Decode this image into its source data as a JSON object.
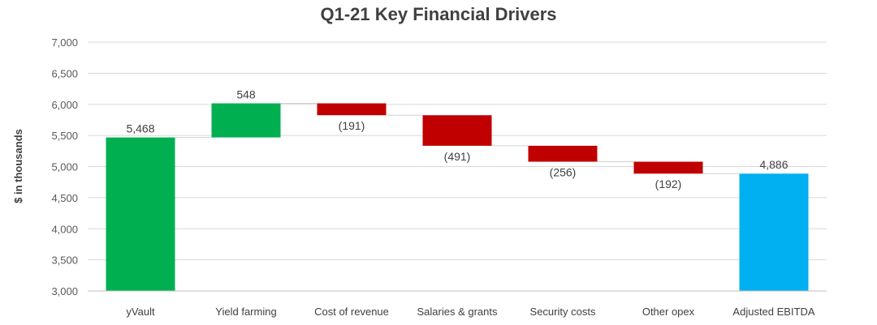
{
  "chart_data": {
    "type": "waterfall",
    "title": "Q1-21 Key Financial Drivers",
    "xlabel": "",
    "ylabel": "$ in thousands",
    "ylim": [
      3000,
      7000
    ],
    "yticks": [
      3000,
      3500,
      4000,
      4500,
      5000,
      5500,
      6000,
      6500,
      7000
    ],
    "ytick_labels": [
      "3,000",
      "3,500",
      "4,000",
      "4,500",
      "5,000",
      "5,500",
      "6,000",
      "6,500",
      "7,000"
    ],
    "grid": true,
    "legend": "none",
    "categories": [
      "yVault",
      "Yield farming",
      "Cost of revenue",
      "Salaries & grants",
      "Security costs",
      "Other opex",
      "Adjusted EBITDA"
    ],
    "values": [
      5468,
      548,
      -191,
      -491,
      -256,
      -192,
      4886
    ],
    "kinds": [
      "total",
      "delta",
      "delta",
      "delta",
      "delta",
      "delta",
      "total"
    ],
    "labels": [
      "5,468",
      "548",
      "(191)",
      "(491)",
      "(256)",
      "(192)",
      "4,886"
    ],
    "colors": {
      "start_total": "#00b050",
      "increase": "#00b050",
      "decrease": "#c00000",
      "end_total": "#00b0f0"
    }
  }
}
